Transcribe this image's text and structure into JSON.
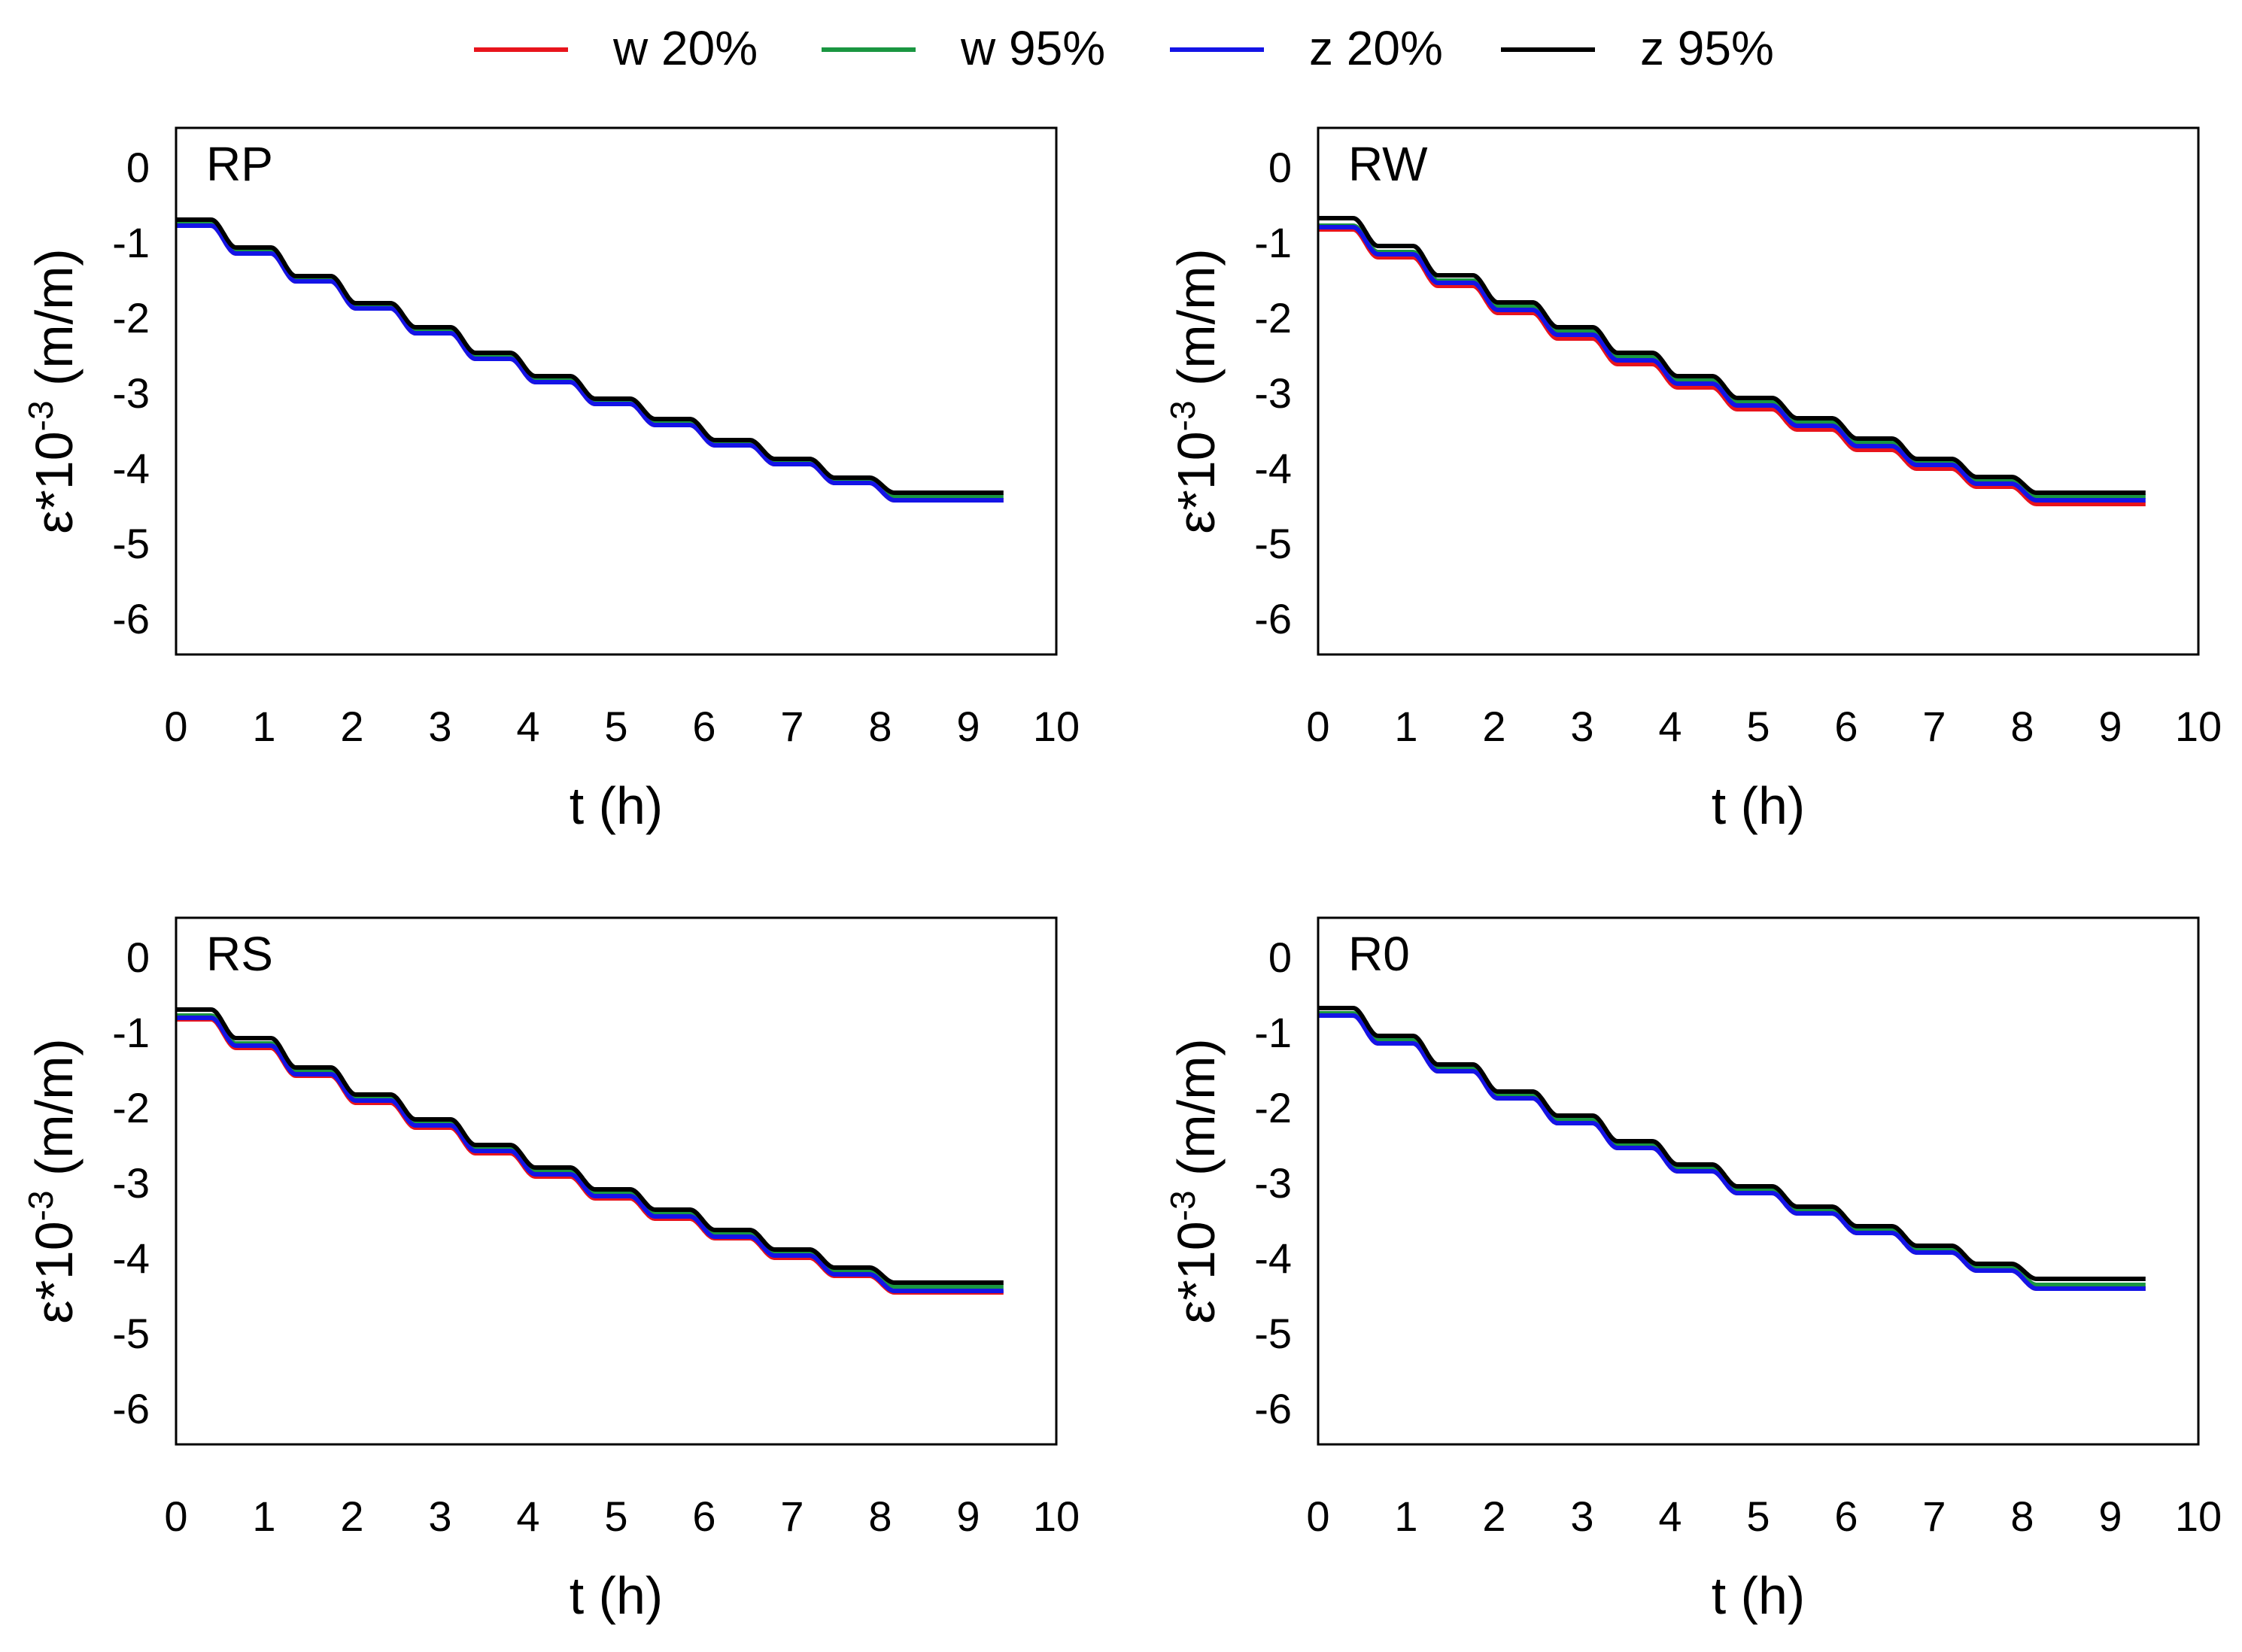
{
  "legend": [
    {
      "label": "w 20%",
      "color": "#e8141c"
    },
    {
      "label": "w 95%",
      "color": "#1a9641"
    },
    {
      "label": "z 20%",
      "color": "#1414e6"
    },
    {
      "label": "z 95%",
      "color": "#000000"
    }
  ],
  "chart_data": [
    {
      "type": "line",
      "title": "RP",
      "xlabel": "t (h)",
      "ylabel": "ε*10-3 (m/m)",
      "xlim": [
        0,
        10
      ],
      "ylim": [
        -6.5,
        0.5
      ],
      "xticks": [
        0,
        1,
        2,
        3,
        4,
        5,
        6,
        7,
        8,
        9,
        10
      ],
      "yticks": [
        0,
        -1,
        -2,
        -3,
        -4,
        -5,
        -6
      ],
      "legend_position": "top",
      "t_end": 9.4,
      "series": [
        {
          "name": "w 20%",
          "color": "#e8141c",
          "levels": [
            -0.8,
            -1.17,
            -1.54,
            -1.9,
            -2.23,
            -2.57,
            -2.88,
            -3.17,
            -3.45,
            -3.72,
            -3.97,
            -4.22,
            -4.45
          ]
        },
        {
          "name": "w 95%",
          "color": "#1a9641",
          "levels": [
            -0.78,
            -1.14,
            -1.51,
            -1.86,
            -2.19,
            -2.53,
            -2.84,
            -3.13,
            -3.41,
            -3.68,
            -3.93,
            -4.18,
            -4.4
          ]
        },
        {
          "name": "z 20%",
          "color": "#1414e6",
          "levels": [
            -0.8,
            -1.17,
            -1.54,
            -1.9,
            -2.23,
            -2.57,
            -2.88,
            -3.17,
            -3.45,
            -3.72,
            -3.97,
            -4.22,
            -4.45
          ]
        },
        {
          "name": "z 95%",
          "color": "#000000",
          "levels": [
            -0.72,
            -1.09,
            -1.47,
            -1.83,
            -2.15,
            -2.49,
            -2.8,
            -3.1,
            -3.37,
            -3.65,
            -3.9,
            -4.15,
            -4.35
          ]
        }
      ]
    },
    {
      "type": "line",
      "title": "RW",
      "xlabel": "t (h)",
      "ylabel": "ε*10-3 (m/m)",
      "xlim": [
        0,
        10
      ],
      "ylim": [
        -6.5,
        0.5
      ],
      "xticks": [
        0,
        1,
        2,
        3,
        4,
        5,
        6,
        7,
        8,
        9,
        10
      ],
      "yticks": [
        0,
        -1,
        -2,
        -3,
        -4,
        -5,
        -6
      ],
      "legend_position": "top",
      "t_end": 9.4,
      "series": [
        {
          "name": "w 20%",
          "color": "#e8141c",
          "levels": [
            -0.85,
            -1.22,
            -1.6,
            -1.96,
            -2.3,
            -2.64,
            -2.95,
            -3.24,
            -3.51,
            -3.78,
            -4.03,
            -4.27,
            -4.5
          ]
        },
        {
          "name": "w 95%",
          "color": "#1a9641",
          "levels": [
            -0.8,
            -1.15,
            -1.53,
            -1.88,
            -2.21,
            -2.55,
            -2.86,
            -3.15,
            -3.42,
            -3.69,
            -3.94,
            -4.19,
            -4.4
          ]
        },
        {
          "name": "z 20%",
          "color": "#1414e6",
          "levels": [
            -0.82,
            -1.18,
            -1.56,
            -1.92,
            -2.25,
            -2.59,
            -2.9,
            -3.19,
            -3.46,
            -3.73,
            -3.98,
            -4.23,
            -4.45
          ]
        },
        {
          "name": "z 95%",
          "color": "#000000",
          "levels": [
            -0.7,
            -1.07,
            -1.46,
            -1.82,
            -2.15,
            -2.49,
            -2.8,
            -3.09,
            -3.36,
            -3.63,
            -3.9,
            -4.14,
            -4.35
          ]
        }
      ]
    },
    {
      "type": "line",
      "title": "RS",
      "xlabel": "t (h)",
      "ylabel": "ε*10-3 (m/m)",
      "xlim": [
        0,
        10
      ],
      "ylim": [
        -6.5,
        0.5
      ],
      "xticks": [
        0,
        1,
        2,
        3,
        4,
        5,
        6,
        7,
        8,
        9,
        10
      ],
      "yticks": [
        0,
        -1,
        -2,
        -3,
        -4,
        -5,
        -6
      ],
      "legend_position": "top",
      "t_end": 9.4,
      "series": [
        {
          "name": "w 20%",
          "color": "#e8141c",
          "levels": [
            -0.85,
            -1.23,
            -1.6,
            -1.96,
            -2.29,
            -2.63,
            -2.94,
            -3.23,
            -3.5,
            -3.76,
            -4.02,
            -4.26,
            -4.48
          ]
        },
        {
          "name": "w 95%",
          "color": "#1a9641",
          "levels": [
            -0.8,
            -1.17,
            -1.54,
            -1.9,
            -2.22,
            -2.56,
            -2.87,
            -3.16,
            -3.44,
            -3.7,
            -3.95,
            -4.2,
            -4.4
          ]
        },
        {
          "name": "z 20%",
          "color": "#1414e6",
          "levels": [
            -0.83,
            -1.2,
            -1.58,
            -1.93,
            -2.26,
            -2.6,
            -2.91,
            -3.2,
            -3.47,
            -3.74,
            -3.99,
            -4.24,
            -4.46
          ]
        },
        {
          "name": "z 95%",
          "color": "#000000",
          "levels": [
            -0.72,
            -1.1,
            -1.49,
            -1.85,
            -2.18,
            -2.52,
            -2.82,
            -3.11,
            -3.38,
            -3.65,
            -3.91,
            -4.15,
            -4.35
          ]
        }
      ]
    },
    {
      "type": "line",
      "title": "R0",
      "xlabel": "t (h)",
      "ylabel": "ε*10-3 (m/m)",
      "xlim": [
        0,
        10
      ],
      "ylim": [
        -6.5,
        0.5
      ],
      "xticks": [
        0,
        1,
        2,
        3,
        4,
        5,
        6,
        7,
        8,
        9,
        10
      ],
      "yticks": [
        0,
        -1,
        -2,
        -3,
        -4,
        -5,
        -6
      ],
      "legend_position": "top",
      "t_end": 9.4,
      "series": [
        {
          "name": "w 20%",
          "color": "#e8141c",
          "levels": [
            -0.8,
            -1.17,
            -1.54,
            -1.9,
            -2.23,
            -2.56,
            -2.87,
            -3.16,
            -3.43,
            -3.69,
            -3.95,
            -4.19,
            -4.43
          ]
        },
        {
          "name": "w 95%",
          "color": "#1a9641",
          "levels": [
            -0.77,
            -1.13,
            -1.5,
            -1.86,
            -2.18,
            -2.52,
            -2.83,
            -3.12,
            -3.39,
            -3.65,
            -3.9,
            -4.15,
            -4.38
          ]
        },
        {
          "name": "z 20%",
          "color": "#1414e6",
          "levels": [
            -0.8,
            -1.17,
            -1.54,
            -1.9,
            -2.23,
            -2.56,
            -2.87,
            -3.16,
            -3.43,
            -3.69,
            -3.95,
            -4.19,
            -4.43
          ]
        },
        {
          "name": "z 95%",
          "color": "#000000",
          "levels": [
            -0.7,
            -1.07,
            -1.45,
            -1.81,
            -2.13,
            -2.47,
            -2.78,
            -3.07,
            -3.34,
            -3.6,
            -3.86,
            -4.1,
            -4.3
          ]
        }
      ]
    }
  ]
}
